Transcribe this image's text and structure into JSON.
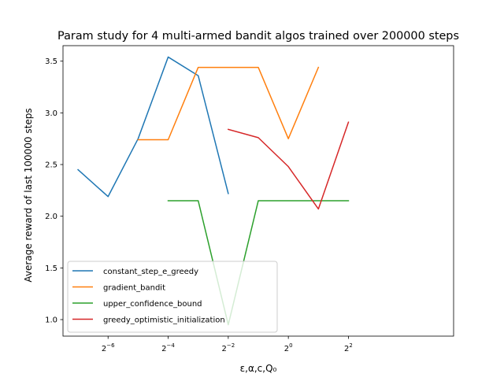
{
  "chart_data": {
    "type": "line",
    "title": "Param study for 4 multi-armed bandit algos trained over 200000 steps",
    "xlabel": "ε,α,c,Q₀",
    "ylabel": "Average reward of last 100000 steps",
    "x_scale": "log2",
    "xlim": [
      -7.5,
      5.5
    ],
    "ylim": [
      0.84,
      3.65
    ],
    "x_ticks": [
      {
        "exp": -6,
        "base": "2",
        "sup": "−6"
      },
      {
        "exp": -4,
        "base": "2",
        "sup": "−4"
      },
      {
        "exp": -2,
        "base": "2",
        "sup": "−2"
      },
      {
        "exp": 0,
        "base": "2",
        "sup": "0"
      },
      {
        "exp": 2,
        "base": "2",
        "sup": "2"
      }
    ],
    "y_ticks": [
      1.0,
      1.5,
      2.0,
      2.5,
      3.0,
      3.5
    ],
    "y_tick_labels": [
      "1.0",
      "1.5",
      "2.0",
      "2.5",
      "3.0",
      "3.5"
    ],
    "legend_position": "lower-left",
    "grid": false,
    "series": [
      {
        "name": "constant_step_e_greedy",
        "color": "#1f77b4",
        "x": [
          "2^-7",
          "2^-6",
          "2^-5",
          "2^-4",
          "2^-3",
          "2^-2"
        ],
        "x_exp": [
          -7,
          -6,
          -5,
          -4,
          -3,
          -2
        ],
        "values": [
          2.45,
          2.19,
          2.75,
          3.54,
          3.36,
          2.22
        ]
      },
      {
        "name": "gradient_bandit",
        "color": "#ff7f0e",
        "x": [
          "2^-5",
          "2^-4",
          "2^-3",
          "2^-2",
          "2^-1",
          "2^0",
          "2^1"
        ],
        "x_exp": [
          -5,
          -4,
          -3,
          -2,
          -1,
          0,
          1
        ],
        "values": [
          2.74,
          2.74,
          3.44,
          3.44,
          3.44,
          2.75,
          3.44
        ]
      },
      {
        "name": "upper_confidence_bound",
        "color": "#2ca02c",
        "x": [
          "2^-4",
          "2^-3",
          "2^-2",
          "2^-1",
          "2^0",
          "2^1",
          "2^2"
        ],
        "x_exp": [
          -4,
          -3,
          -2,
          -1,
          0,
          1,
          2
        ],
        "values": [
          2.15,
          2.15,
          0.95,
          2.15,
          2.15,
          2.15,
          2.15
        ]
      },
      {
        "name": "greedy_optimistic_initialization",
        "color": "#d62728",
        "x": [
          "2^-2",
          "2^-1",
          "2^0",
          "2^1",
          "2^2"
        ],
        "x_exp": [
          -2,
          -1,
          0,
          1,
          2
        ],
        "values": [
          2.84,
          2.76,
          2.48,
          2.07,
          2.91
        ]
      }
    ]
  }
}
